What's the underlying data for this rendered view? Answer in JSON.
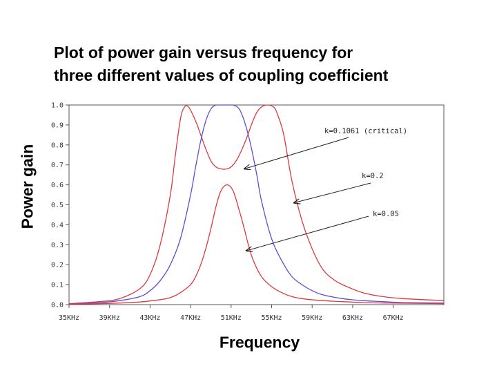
{
  "chart_data": {
    "type": "line",
    "title_lines": [
      "Plot of power gain versus frequency for",
      "three different values of coupling coefficient"
    ],
    "xlabel": "Frequency",
    "ylabel": "Power gain",
    "x_unit": "KHz",
    "xlim": [
      35,
      72
    ],
    "ylim": [
      0,
      1
    ],
    "x_ticks": [
      "35KHz",
      "39KHz",
      "43KHz",
      "47KHz",
      "51KHz",
      "55KHz",
      "59KHz",
      "63KHz",
      "67KHz"
    ],
    "x_tick_values": [
      35,
      39,
      43,
      47,
      51,
      55,
      59,
      63,
      67
    ],
    "y_ticks": [
      "0.0",
      "0.1",
      "0.2",
      "0.3",
      "0.4",
      "0.5",
      "0.6",
      "0.7",
      "0.8",
      "0.9",
      "1.0"
    ],
    "y_tick_values": [
      0,
      0.1,
      0.2,
      0.3,
      0.4,
      0.5,
      0.6,
      0.7,
      0.8,
      0.9,
      1.0
    ],
    "grid": false,
    "center_frequency_khz": 50.6,
    "series": [
      {
        "name": "k=0.2",
        "color": "#d9393f",
        "x": [
          35,
          38,
          40,
          42,
          43,
          44,
          45,
          45.5,
          46,
          46.4,
          46.8,
          47.5,
          48,
          48.5,
          49,
          49.5,
          50,
          50.6,
          51,
          51.5,
          52,
          52.5,
          53,
          53.5,
          54,
          54.5,
          55.2,
          55.6,
          56.2,
          57,
          58,
          59,
          60,
          61,
          62,
          64,
          66,
          68,
          72
        ],
        "values": [
          0.005,
          0.015,
          0.03,
          0.08,
          0.15,
          0.3,
          0.55,
          0.75,
          0.93,
          0.99,
          0.99,
          0.92,
          0.85,
          0.78,
          0.72,
          0.69,
          0.68,
          0.68,
          0.69,
          0.72,
          0.77,
          0.83,
          0.9,
          0.96,
          0.99,
          1.0,
          0.99,
          0.95,
          0.85,
          0.62,
          0.42,
          0.28,
          0.18,
          0.13,
          0.1,
          0.06,
          0.04,
          0.03,
          0.02
        ]
      },
      {
        "name": "k=0.1061 (critical)",
        "color": "#5a4ed0",
        "x": [
          35,
          38,
          40,
          42,
          43,
          44,
          45,
          46,
          47,
          47.5,
          48,
          48.5,
          49,
          49.5,
          50,
          50.6,
          51.2,
          51.8,
          52.3,
          52.8,
          53.5,
          54,
          55,
          56,
          57,
          58,
          59,
          60,
          62,
          64,
          66,
          68,
          72
        ],
        "values": [
          0.003,
          0.01,
          0.02,
          0.04,
          0.07,
          0.12,
          0.2,
          0.33,
          0.55,
          0.69,
          0.82,
          0.92,
          0.98,
          1.0,
          1.0,
          1.0,
          1.0,
          0.98,
          0.92,
          0.83,
          0.66,
          0.52,
          0.33,
          0.22,
          0.14,
          0.1,
          0.07,
          0.05,
          0.03,
          0.02,
          0.015,
          0.01,
          0.008
        ]
      },
      {
        "name": "k=0.05",
        "color": "#d9393f",
        "x": [
          35,
          38,
          40,
          42,
          44,
          45,
          46,
          47,
          47.5,
          48,
          48.5,
          49,
          49.5,
          50,
          50.6,
          51.2,
          51.7,
          52.2,
          52.7,
          53.2,
          54,
          55,
          56,
          57,
          58,
          60,
          62,
          64,
          66,
          68,
          72
        ],
        "values": [
          0.002,
          0.005,
          0.008,
          0.013,
          0.025,
          0.035,
          0.06,
          0.1,
          0.14,
          0.2,
          0.28,
          0.38,
          0.49,
          0.57,
          0.6,
          0.57,
          0.49,
          0.4,
          0.3,
          0.22,
          0.14,
          0.09,
          0.06,
          0.04,
          0.03,
          0.02,
          0.015,
          0.01,
          0.008,
          0.007,
          0.005
        ]
      }
    ],
    "annotations": [
      {
        "text": "k=0.1061 (critical)",
        "series": "k=0.1061 (critical)",
        "arrow_to": [
          52.3,
          0.68
        ]
      },
      {
        "text": "k=0.2",
        "series": "k=0.2",
        "arrow_to": [
          57.2,
          0.51
        ]
      },
      {
        "text": "k=0.05",
        "series": "k=0.05",
        "arrow_to": [
          52.5,
          0.27
        ]
      }
    ]
  }
}
